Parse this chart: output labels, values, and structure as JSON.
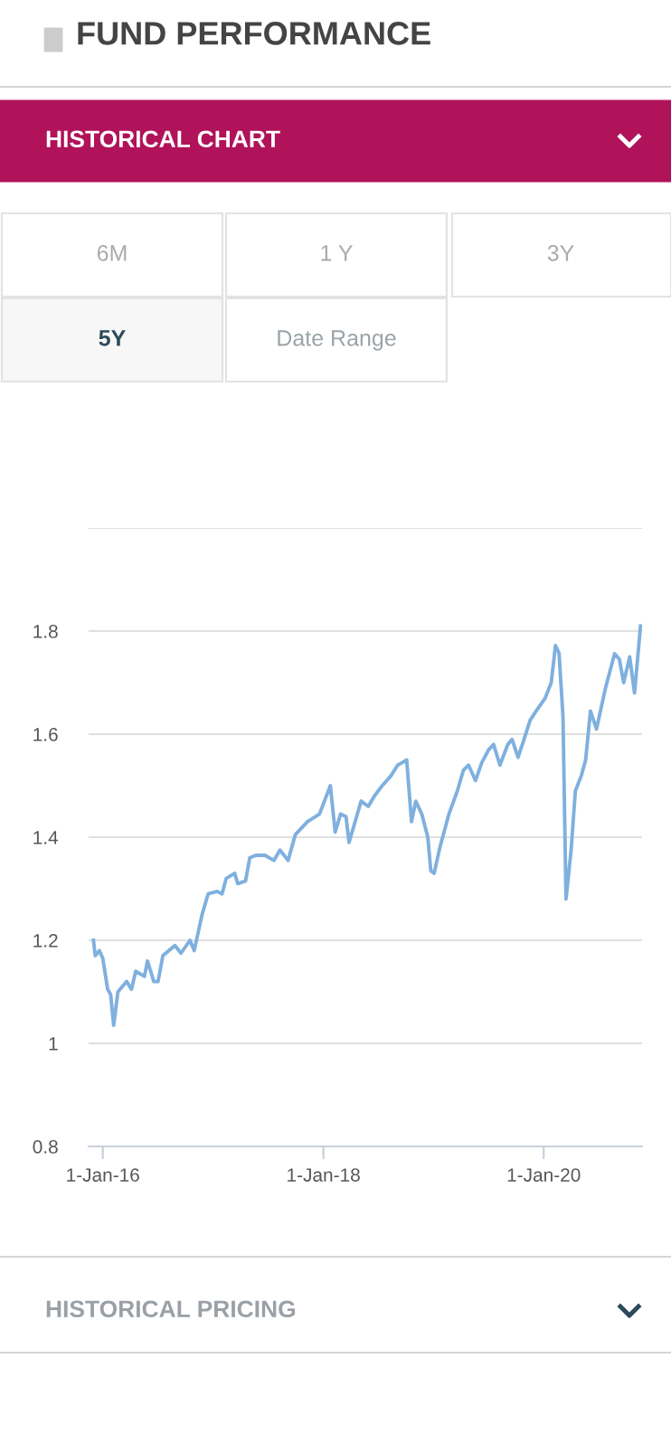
{
  "chart_data": {
    "type": "line",
    "title": "FUND PERFORMANCE",
    "annotations": [
      "HISTORICAL CHART",
      "6M",
      "1 Y",
      "3Y",
      "5Y",
      "Date Range",
      "HISTORICAL PRICING"
    ],
    "x": [
      "2015-12-01",
      "2015-12-07",
      "2015-12-21",
      "2016-01-01",
      "2016-01-17",
      "2016-01-27",
      "2016-02-06",
      "2016-02-20",
      "2016-03-20",
      "2016-04-05",
      "2016-04-19",
      "2016-05-18",
      "2016-05-28",
      "2016-06-18",
      "2016-07-02",
      "2016-07-18",
      "2016-08-27",
      "2016-09-16",
      "2016-10-16",
      "2016-10-30",
      "2016-11-25",
      "2016-12-15",
      "2017-01-14",
      "2017-01-30",
      "2017-02-13",
      "2017-03-13",
      "2017-03-23",
      "2017-04-18",
      "2017-05-02",
      "2017-05-22",
      "2017-06-21",
      "2017-07-21",
      "2017-08-10",
      "2017-09-06",
      "2017-09-30",
      "2017-11-09",
      "2017-12-19",
      "2018-01-24",
      "2018-02-09",
      "2018-02-27",
      "2018-03-17",
      "2018-03-27",
      "2018-05-06",
      "2018-05-30",
      "2018-06-19",
      "2018-07-15",
      "2018-08-14",
      "2018-09-04",
      "2018-09-20",
      "2018-10-04",
      "2018-10-20",
      "2018-11-03",
      "2018-11-23",
      "2018-12-13",
      "2018-12-23",
      "2019-01-03",
      "2019-01-22",
      "2019-02-21",
      "2019-03-21",
      "2019-04-10",
      "2019-04-27",
      "2019-05-20",
      "2019-06-10",
      "2019-07-03",
      "2019-07-19",
      "2019-08-09",
      "2019-09-04",
      "2019-09-18",
      "2019-10-08",
      "2019-10-28",
      "2019-11-17",
      "2019-12-07",
      "2020-01-06",
      "2020-01-26",
      "2020-02-09",
      "2020-02-21",
      "2020-03-05",
      "2020-03-15",
      "2020-04-01",
      "2020-04-15",
      "2020-05-05",
      "2020-05-19",
      "2020-06-04",
      "2020-06-24",
      "2020-07-24",
      "2020-08-23",
      "2020-09-08",
      "2020-09-22",
      "2020-10-12",
      "2020-10-28",
      "2020-11-17"
    ],
    "series": [
      {
        "color": "#7fb0de",
        "values": [
          1.2,
          1.17,
          1.18,
          1.165,
          1.105,
          1.095,
          1.035,
          1.1,
          1.12,
          1.105,
          1.14,
          1.13,
          1.16,
          1.12,
          1.12,
          1.17,
          1.19,
          1.175,
          1.2,
          1.18,
          1.25,
          1.29,
          1.295,
          1.29,
          1.32,
          1.33,
          1.31,
          1.315,
          1.36,
          1.365,
          1.365,
          1.355,
          1.375,
          1.355,
          1.405,
          1.43,
          1.445,
          1.5,
          1.41,
          1.445,
          1.44,
          1.39,
          1.47,
          1.46,
          1.48,
          1.5,
          1.52,
          1.54,
          1.545,
          1.55,
          1.43,
          1.47,
          1.445,
          1.4,
          1.335,
          1.33,
          1.38,
          1.445,
          1.49,
          1.53,
          1.54,
          1.51,
          1.545,
          1.57,
          1.58,
          1.54,
          1.58,
          1.59,
          1.555,
          1.59,
          1.627,
          1.645,
          1.67,
          1.7,
          1.772,
          1.757,
          1.633,
          1.28,
          1.376,
          1.49,
          1.52,
          1.55,
          1.645,
          1.61,
          1.69,
          1.756,
          1.745,
          1.7,
          1.75,
          1.68,
          1.81
        ]
      }
    ],
    "xlim": [
      "2015-11-15",
      "2020-11-22"
    ],
    "xticks": [
      {
        "value": "2016-01-01",
        "label": "1-Jan-16"
      },
      {
        "value": "2018-01-01",
        "label": "1-Jan-18"
      },
      {
        "value": "2020-01-01",
        "label": "1-Jan-20"
      }
    ],
    "ylim": [
      0.8,
      2.0
    ],
    "yticks": [
      0.8,
      1,
      1.2,
      1.4,
      1.6,
      1.8,
      {
        "value": 2.0,
        "label": null
      }
    ],
    "grid": "y",
    "legend": false,
    "marker": "none",
    "line_style": "solid"
  }
}
